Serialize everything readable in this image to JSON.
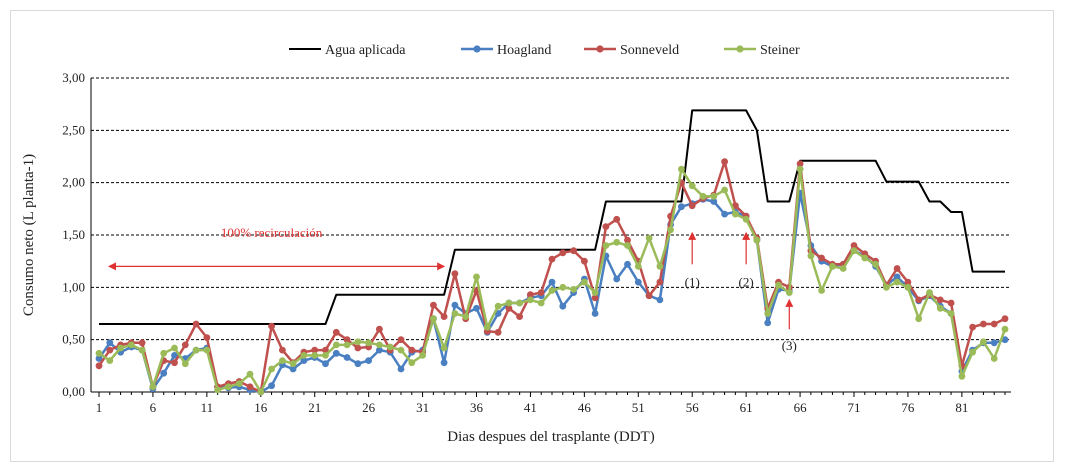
{
  "chart_data": {
    "type": "line",
    "title": "",
    "xlabel": "Dias despues del trasplante (DDT)",
    "ylabel": "Consumo neto (L planta-1)",
    "ylim": [
      0,
      3
    ],
    "yticks": [
      "0,00",
      "0,50",
      "1,00",
      "1,50",
      "2,00",
      "2,50",
      "3,00"
    ],
    "xticks": [
      1,
      6,
      11,
      16,
      21,
      26,
      31,
      36,
      41,
      46,
      51,
      56,
      61,
      66,
      71,
      76,
      81
    ],
    "xlim": [
      1,
      84
    ],
    "grid": "horizontal-dashed",
    "legend_position": "top",
    "series": [
      {
        "name": "Agua aplicada",
        "color": "#000000",
        "markers": false,
        "points": [
          [
            1,
            0.65
          ],
          [
            22,
            0.65
          ],
          [
            23,
            0.93
          ],
          [
            33,
            0.93
          ],
          [
            34,
            1.36
          ],
          [
            47,
            1.36
          ],
          [
            48,
            1.82
          ],
          [
            55,
            1.82
          ],
          [
            56,
            2.69
          ],
          [
            61,
            2.69
          ],
          [
            62,
            2.5
          ],
          [
            63,
            1.82
          ],
          [
            65,
            1.82
          ],
          [
            66,
            2.21
          ],
          [
            73,
            2.21
          ],
          [
            74,
            2.01
          ],
          [
            77,
            2.01
          ],
          [
            78,
            1.82
          ],
          [
            79,
            1.82
          ],
          [
            80,
            1.72
          ],
          [
            81,
            1.72
          ],
          [
            82,
            1.15
          ],
          [
            85,
            1.15
          ]
        ]
      },
      {
        "name": "Hoagland",
        "color": "#4a7fc1",
        "markers": true,
        "points": [
          [
            1,
            0.32
          ],
          [
            2,
            0.47
          ],
          [
            3,
            0.38
          ],
          [
            4,
            0.43
          ],
          [
            5,
            0.4
          ],
          [
            6,
            0.03
          ],
          [
            7,
            0.18
          ],
          [
            8,
            0.35
          ],
          [
            9,
            0.32
          ],
          [
            10,
            0.4
          ],
          [
            11,
            0.42
          ],
          [
            12,
            0.05
          ],
          [
            13,
            0.04
          ],
          [
            14,
            0.05
          ],
          [
            15,
            0.02
          ],
          [
            16,
            0.0
          ],
          [
            17,
            0.06
          ],
          [
            18,
            0.26
          ],
          [
            19,
            0.22
          ],
          [
            20,
            0.3
          ],
          [
            21,
            0.33
          ],
          [
            22,
            0.27
          ],
          [
            23,
            0.37
          ],
          [
            24,
            0.33
          ],
          [
            25,
            0.27
          ],
          [
            26,
            0.3
          ],
          [
            27,
            0.4
          ],
          [
            28,
            0.38
          ],
          [
            29,
            0.22
          ],
          [
            30,
            0.38
          ],
          [
            31,
            0.4
          ],
          [
            32,
            0.7
          ],
          [
            33,
            0.28
          ],
          [
            34,
            0.83
          ],
          [
            35,
            0.75
          ],
          [
            36,
            0.8
          ],
          [
            37,
            0.57
          ],
          [
            38,
            0.75
          ],
          [
            39,
            0.85
          ],
          [
            40,
            0.85
          ],
          [
            41,
            0.9
          ],
          [
            42,
            0.92
          ],
          [
            43,
            1.05
          ],
          [
            44,
            0.82
          ],
          [
            45,
            0.95
          ],
          [
            46,
            1.08
          ],
          [
            47,
            0.75
          ],
          [
            48,
            1.3
          ],
          [
            49,
            1.08
          ],
          [
            50,
            1.22
          ],
          [
            51,
            1.05
          ],
          [
            52,
            0.92
          ],
          [
            53,
            0.88
          ],
          [
            54,
            1.6
          ],
          [
            55,
            1.77
          ],
          [
            56,
            1.8
          ],
          [
            57,
            1.84
          ],
          [
            58,
            1.82
          ],
          [
            59,
            1.7
          ],
          [
            60,
            1.72
          ],
          [
            61,
            1.68
          ],
          [
            62,
            1.45
          ],
          [
            63,
            0.66
          ],
          [
            64,
            0.98
          ],
          [
            65,
            0.97
          ],
          [
            66,
            1.9
          ],
          [
            67,
            1.4
          ],
          [
            68,
            1.25
          ],
          [
            69,
            1.2
          ],
          [
            70,
            1.22
          ],
          [
            71,
            1.35
          ],
          [
            72,
            1.3
          ],
          [
            73,
            1.2
          ],
          [
            74,
            1.02
          ],
          [
            75,
            1.1
          ],
          [
            76,
            1.0
          ],
          [
            77,
            0.87
          ],
          [
            78,
            0.92
          ],
          [
            79,
            0.82
          ],
          [
            80,
            0.75
          ],
          [
            81,
            0.2
          ],
          [
            82,
            0.4
          ],
          [
            83,
            0.47
          ],
          [
            84,
            0.47
          ],
          [
            85,
            0.5
          ]
        ]
      },
      {
        "name": "Sonneveld",
        "color": "#c0504d",
        "markers": true,
        "points": [
          [
            1,
            0.25
          ],
          [
            2,
            0.4
          ],
          [
            3,
            0.45
          ],
          [
            4,
            0.47
          ],
          [
            5,
            0.47
          ],
          [
            6,
            0.05
          ],
          [
            7,
            0.3
          ],
          [
            8,
            0.28
          ],
          [
            9,
            0.45
          ],
          [
            10,
            0.65
          ],
          [
            11,
            0.52
          ],
          [
            12,
            0.05
          ],
          [
            13,
            0.08
          ],
          [
            14,
            0.1
          ],
          [
            15,
            0.05
          ],
          [
            16,
            0.0
          ],
          [
            17,
            0.63
          ],
          [
            18,
            0.4
          ],
          [
            19,
            0.28
          ],
          [
            20,
            0.38
          ],
          [
            21,
            0.4
          ],
          [
            22,
            0.4
          ],
          [
            23,
            0.57
          ],
          [
            24,
            0.5
          ],
          [
            25,
            0.42
          ],
          [
            26,
            0.43
          ],
          [
            27,
            0.6
          ],
          [
            28,
            0.4
          ],
          [
            29,
            0.5
          ],
          [
            30,
            0.4
          ],
          [
            31,
            0.38
          ],
          [
            32,
            0.83
          ],
          [
            33,
            0.72
          ],
          [
            34,
            1.13
          ],
          [
            35,
            0.7
          ],
          [
            36,
            0.97
          ],
          [
            37,
            0.58
          ],
          [
            38,
            0.57
          ],
          [
            39,
            0.8
          ],
          [
            40,
            0.72
          ],
          [
            41,
            0.93
          ],
          [
            42,
            0.95
          ],
          [
            43,
            1.27
          ],
          [
            44,
            1.33
          ],
          [
            45,
            1.35
          ],
          [
            46,
            1.25
          ],
          [
            47,
            0.9
          ],
          [
            48,
            1.58
          ],
          [
            49,
            1.65
          ],
          [
            50,
            1.45
          ],
          [
            51,
            1.25
          ],
          [
            52,
            0.92
          ],
          [
            53,
            1.05
          ],
          [
            54,
            1.68
          ],
          [
            55,
            2.0
          ],
          [
            56,
            1.78
          ],
          [
            57,
            1.85
          ],
          [
            58,
            1.88
          ],
          [
            59,
            2.2
          ],
          [
            60,
            1.78
          ],
          [
            61,
            1.68
          ],
          [
            62,
            1.47
          ],
          [
            63,
            0.8
          ],
          [
            64,
            1.05
          ],
          [
            65,
            1.0
          ],
          [
            66,
            2.18
          ],
          [
            67,
            1.35
          ],
          [
            68,
            1.28
          ],
          [
            69,
            1.22
          ],
          [
            70,
            1.22
          ],
          [
            71,
            1.4
          ],
          [
            72,
            1.32
          ],
          [
            73,
            1.25
          ],
          [
            74,
            1.02
          ],
          [
            75,
            1.18
          ],
          [
            76,
            1.05
          ],
          [
            77,
            0.88
          ],
          [
            78,
            0.93
          ],
          [
            79,
            0.88
          ],
          [
            80,
            0.85
          ],
          [
            81,
            0.25
          ],
          [
            82,
            0.62
          ],
          [
            83,
            0.65
          ],
          [
            84,
            0.65
          ],
          [
            85,
            0.7
          ]
        ]
      },
      {
        "name": "Steiner",
        "color": "#9bbb59",
        "markers": true,
        "points": [
          [
            1,
            0.37
          ],
          [
            2,
            0.3
          ],
          [
            3,
            0.42
          ],
          [
            4,
            0.45
          ],
          [
            5,
            0.4
          ],
          [
            6,
            0.05
          ],
          [
            7,
            0.37
          ],
          [
            8,
            0.42
          ],
          [
            9,
            0.27
          ],
          [
            10,
            0.4
          ],
          [
            11,
            0.4
          ],
          [
            12,
            0.02
          ],
          [
            13,
            0.05
          ],
          [
            14,
            0.08
          ],
          [
            15,
            0.17
          ],
          [
            16,
            0.0
          ],
          [
            17,
            0.22
          ],
          [
            18,
            0.3
          ],
          [
            19,
            0.27
          ],
          [
            20,
            0.35
          ],
          [
            21,
            0.35
          ],
          [
            22,
            0.35
          ],
          [
            23,
            0.45
          ],
          [
            24,
            0.45
          ],
          [
            25,
            0.48
          ],
          [
            26,
            0.47
          ],
          [
            27,
            0.45
          ],
          [
            28,
            0.43
          ],
          [
            29,
            0.4
          ],
          [
            30,
            0.28
          ],
          [
            31,
            0.35
          ],
          [
            32,
            0.7
          ],
          [
            33,
            0.42
          ],
          [
            34,
            0.75
          ],
          [
            35,
            0.72
          ],
          [
            36,
            1.1
          ],
          [
            37,
            0.62
          ],
          [
            38,
            0.82
          ],
          [
            39,
            0.85
          ],
          [
            40,
            0.85
          ],
          [
            41,
            0.88
          ],
          [
            42,
            0.85
          ],
          [
            43,
            0.97
          ],
          [
            44,
            1.0
          ],
          [
            45,
            0.98
          ],
          [
            46,
            1.05
          ],
          [
            47,
            0.95
          ],
          [
            48,
            1.4
          ],
          [
            49,
            1.43
          ],
          [
            50,
            1.4
          ],
          [
            51,
            1.2
          ],
          [
            52,
            1.47
          ],
          [
            53,
            1.2
          ],
          [
            54,
            1.55
          ],
          [
            55,
            2.13
          ],
          [
            56,
            1.97
          ],
          [
            57,
            1.87
          ],
          [
            58,
            1.87
          ],
          [
            59,
            1.93
          ],
          [
            60,
            1.7
          ],
          [
            61,
            1.65
          ],
          [
            62,
            1.45
          ],
          [
            63,
            0.75
          ],
          [
            64,
            1.02
          ],
          [
            65,
            0.95
          ],
          [
            66,
            2.13
          ],
          [
            67,
            1.3
          ],
          [
            68,
            0.97
          ],
          [
            69,
            1.2
          ],
          [
            70,
            1.18
          ],
          [
            71,
            1.35
          ],
          [
            72,
            1.28
          ],
          [
            73,
            1.22
          ],
          [
            74,
            1.0
          ],
          [
            75,
            1.05
          ],
          [
            76,
            1.0
          ],
          [
            77,
            0.7
          ],
          [
            78,
            0.95
          ],
          [
            79,
            0.8
          ],
          [
            80,
            0.75
          ],
          [
            81,
            0.15
          ],
          [
            82,
            0.38
          ],
          [
            83,
            0.48
          ],
          [
            84,
            0.32
          ],
          [
            85,
            0.6
          ]
        ]
      }
    ],
    "annotations": [
      {
        "text": "100% recirculación",
        "x_from": 1,
        "x_to": 33,
        "y": 1.2,
        "color": "#e03131"
      },
      {
        "text": "(1)",
        "x": 56,
        "y_arrow_from": 1.22,
        "y_arrow_to": 1.52,
        "label_y": 1.01
      },
      {
        "text": "(2)",
        "x": 61,
        "y_arrow_from": 1.22,
        "y_arrow_to": 1.52,
        "label_y": 1.01
      },
      {
        "text": "(3)",
        "x": 65,
        "y_arrow_from": 0.6,
        "y_arrow_to": 0.88,
        "label_y": 0.4
      }
    ]
  }
}
